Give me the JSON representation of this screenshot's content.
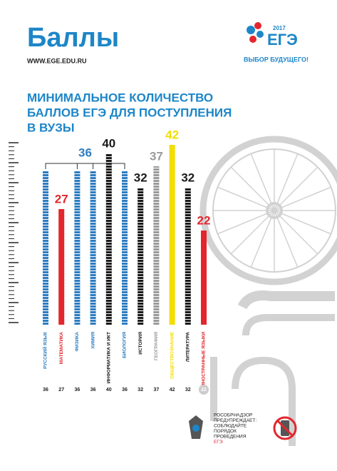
{
  "header": {
    "title": "Баллы",
    "url": "WWW.EGE.EDU.RU"
  },
  "logo": {
    "year": "2017",
    "name": "ЕГЭ",
    "slogan": "ВЫБОР БУДУЩЕГО!"
  },
  "chart_data": {
    "type": "bar",
    "title_lines": [
      "МИНИМАЛЬНОЕ КОЛИЧЕСТВО",
      "БАЛЛОВ ЕГЭ ДЛЯ ПОСТУПЛЕНИЯ",
      "В ВУЗЫ"
    ],
    "categories": [
      "РУССКИЙ ЯЗЫК",
      "МАТЕМАТИКА",
      "ФИЗИКА",
      "ХИМИЯ",
      "ИНФОРМАТИКА И ИКТ",
      "БИОЛОГИЯ",
      "ИСТОРИЯ",
      "ГЕОГРАФИЯ",
      "ОБЩЕСТВОЗНАНИЕ",
      "ЛИТЕРАТУРА",
      "ИНОСТРАННЫЕ ЯЗЫКИ"
    ],
    "values": [
      36,
      27,
      36,
      36,
      40,
      36,
      32,
      37,
      42,
      32,
      22
    ],
    "colors": [
      "#2e7dc0",
      "#e3262d",
      "#2e7dc0",
      "#2e7dc0",
      "#1a1a1a",
      "#2e7dc0",
      "#1a1a1a",
      "#9a9a9a",
      "#f2de00",
      "#1a1a1a",
      "#e3262d"
    ],
    "patterns": [
      "striped",
      "solid",
      "striped",
      "striped",
      "striped",
      "striped",
      "striped",
      "striped",
      "solid",
      "striped",
      "solid"
    ],
    "ylim": [
      0,
      42
    ]
  },
  "footer": {
    "notice": [
      "РОСОБРНАДЗОР",
      "ПРЕДУПРЕЖДАЕТ:",
      "СОБЛЮДАЙТЕ",
      "ПОРЯДОК",
      "ПРОВЕДЕНИЯ",
      "ЕГЭ"
    ]
  }
}
